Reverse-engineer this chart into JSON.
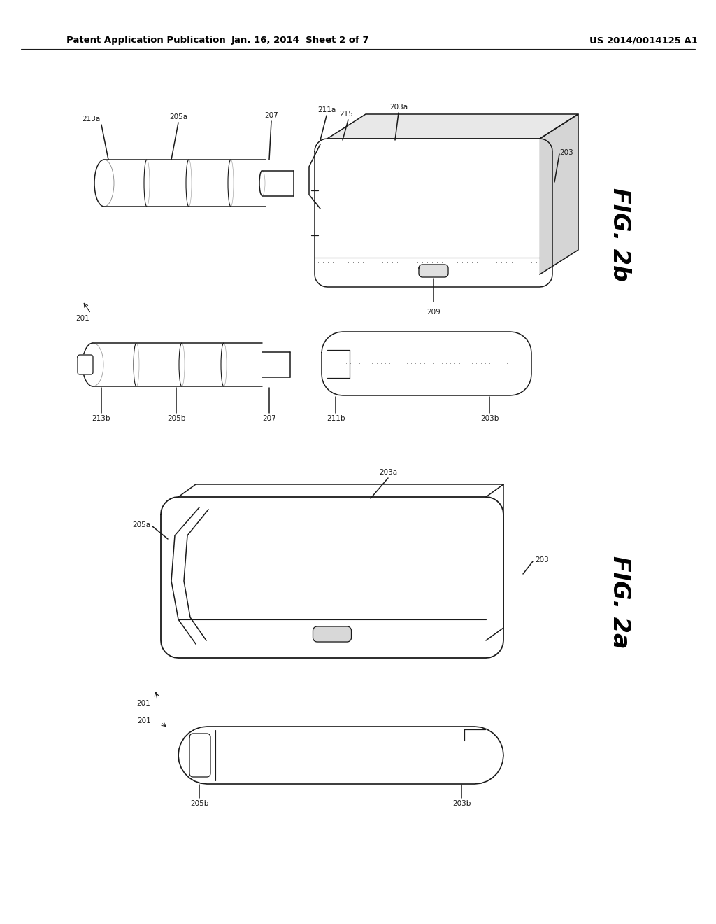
{
  "background_color": "#ffffff",
  "header_left": "Patent Application Publication",
  "header_mid": "Jan. 16, 2014  Sheet 2 of 7",
  "header_right": "US 2014/0014125 A1",
  "fig2b_label": "FIG. 2b",
  "fig2a_label": "FIG. 2a",
  "line_color": "#1a1a1a",
  "label_fontsize": 7.5,
  "fig_label_fontsize": 20
}
